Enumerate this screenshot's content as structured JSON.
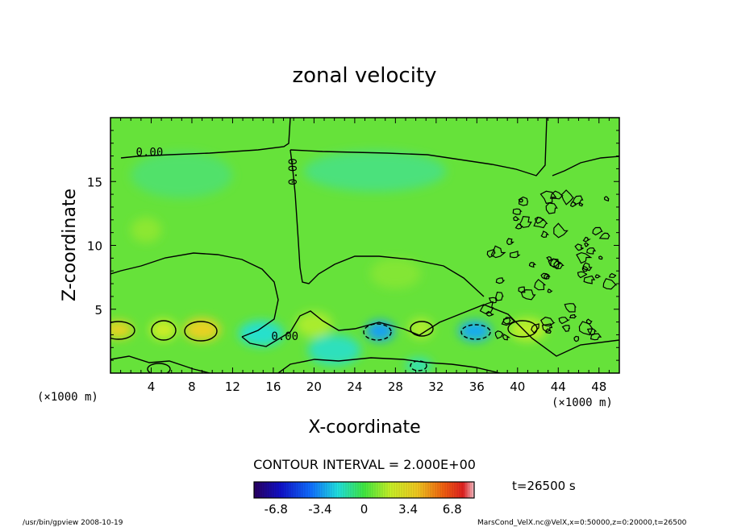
{
  "chart_data": {
    "type": "heatmap",
    "title": "zonal velocity",
    "xlabel": "X-coordinate",
    "ylabel": "Z-coordinate",
    "x_unit_note": "(×1000 m)",
    "y_unit_note": "(×1000 m)",
    "xlim": [
      0,
      50
    ],
    "ylim": [
      0,
      20
    ],
    "x_ticks": [
      4,
      8,
      12,
      16,
      20,
      24,
      28,
      32,
      36,
      40,
      44,
      48
    ],
    "y_ticks": [
      5,
      10,
      15
    ],
    "contour_labels": [
      {
        "text": "0.00",
        "x": 2.5,
        "z": 17.0,
        "rot": 0
      },
      {
        "text": "0.00",
        "x": 18.3,
        "z": 14.7,
        "rot": -90
      },
      {
        "text": "0.00",
        "x": 15.8,
        "z": 2.6,
        "rot": 0
      }
    ],
    "contour_interval_text": "CONTOUR INTERVAL = 2.000E+00",
    "time_label": "t=26500 s",
    "colorbar": {
      "ticks": [
        "-6.8",
        "-3.4",
        "0",
        "3.4",
        "6.8"
      ],
      "tick_values": [
        -6.8,
        -3.4,
        0,
        3.4,
        6.8
      ],
      "range": [
        -8.5,
        8.5
      ]
    },
    "warm_blobs": [
      {
        "x": 0.8,
        "z": 3.4,
        "rx": 1.4,
        "rz": 0.7,
        "v": 3.5
      },
      {
        "x": 5.2,
        "z": 3.4,
        "rx": 1.3,
        "rz": 0.8,
        "v": 2.2
      },
      {
        "x": 9.0,
        "z": 3.4,
        "rx": 1.8,
        "rz": 0.9,
        "v": 3.6
      },
      {
        "x": 20.0,
        "z": 3.8,
        "rx": 1.8,
        "rz": 1.0,
        "v": 1.4
      },
      {
        "x": 30.5,
        "z": 3.5,
        "rx": 1.2,
        "rz": 0.8,
        "v": 1.5
      },
      {
        "x": 41.0,
        "z": 3.4,
        "rx": 1.8,
        "rz": 0.9,
        "v": 1.8
      },
      {
        "x": 3.5,
        "z": 11.2,
        "rx": 1.5,
        "rz": 1.0,
        "v": 0.8
      },
      {
        "x": 28.0,
        "z": 7.8,
        "rx": 2.5,
        "rz": 1.2,
        "v": 0.6
      }
    ],
    "cool_blobs": [
      {
        "x": 14.8,
        "z": 3.1,
        "rx": 2.2,
        "rz": 1.0,
        "v": -1.8
      },
      {
        "x": 26.5,
        "z": 3.3,
        "rx": 1.4,
        "rz": 0.8,
        "v": -3.2
      },
      {
        "x": 35.8,
        "z": 3.3,
        "rx": 1.6,
        "rz": 0.8,
        "v": -3.0
      },
      {
        "x": 22.0,
        "z": 1.8,
        "rx": 2.6,
        "rz": 1.2,
        "v": -1.6
      },
      {
        "x": 30.3,
        "z": 0.6,
        "rx": 1.3,
        "rz": 0.6,
        "v": -1.5
      },
      {
        "x": 7.0,
        "z": 15.5,
        "rx": 5.0,
        "rz": 1.8,
        "v": -0.6
      },
      {
        "x": 26.0,
        "z": 15.8,
        "rx": 7.0,
        "rz": 1.6,
        "v": -0.8
      }
    ]
  },
  "footer": {
    "left": "/usr/bin/gpview   2008-10-19",
    "right": "MarsCond_VelX.nc@VelX,x=0:50000,z=0:20000,t=26500"
  }
}
